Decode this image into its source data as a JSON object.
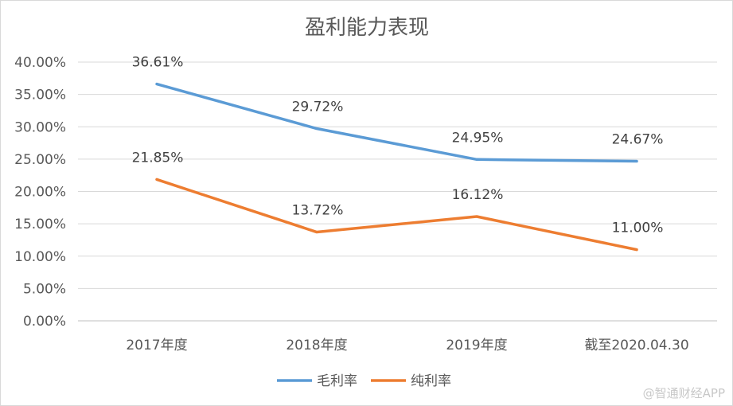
{
  "chart_data": {
    "type": "line",
    "title": "盈利能力表现",
    "categories": [
      "2017年度",
      "2018年度",
      "2019年度",
      "截至2020.04.30"
    ],
    "series": [
      {
        "name": "毛利率",
        "color": "#5b9bd5",
        "values": [
          36.61,
          29.72,
          24.95,
          24.67
        ],
        "labels": [
          "36.61%",
          "29.72%",
          "24.95%",
          "24.67%"
        ]
      },
      {
        "name": "纯利率",
        "color": "#ed7d31",
        "values": [
          21.85,
          13.72,
          16.12,
          11.0
        ],
        "labels": [
          "21.85%",
          "13.72%",
          "16.12%",
          "11.00%"
        ]
      }
    ],
    "ylim": [
      0,
      40
    ],
    "yticks": [
      0,
      5,
      10,
      15,
      20,
      25,
      30,
      35,
      40
    ],
    "ytick_labels": [
      "0.00%",
      "5.00%",
      "10.00%",
      "15.00%",
      "20.00%",
      "25.00%",
      "30.00%",
      "35.00%",
      "40.00%"
    ],
    "grid": true,
    "legend": "bottom",
    "xlabel": "",
    "ylabel": ""
  },
  "watermark": "@智通财经APP"
}
